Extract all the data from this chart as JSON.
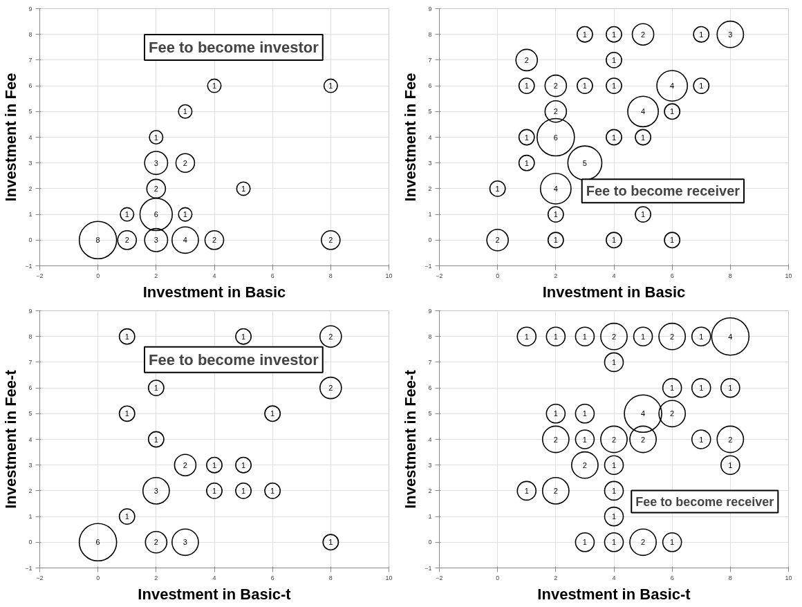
{
  "chart_data": [
    {
      "type": "bubble",
      "xlabel": "Investment in Basic",
      "ylabel": "Investment in Fee",
      "xlim": [
        -2,
        10
      ],
      "ylim": [
        -1,
        9
      ],
      "xticks": [
        -2,
        0,
        2,
        4,
        6,
        8,
        10
      ],
      "yticks": [
        -1,
        0,
        1,
        2,
        3,
        4,
        5,
        6,
        7,
        8,
        9
      ],
      "grid": true,
      "series": [
        {
          "color": "#000000",
          "x": [
            0,
            1,
            2,
            3,
            4,
            8,
            1,
            2,
            3,
            2,
            5,
            2,
            3,
            2,
            3,
            4,
            8
          ],
          "values": [
            0,
            0,
            0,
            0,
            0,
            0,
            1,
            1,
            1,
            2,
            2,
            3,
            3,
            4,
            5,
            6,
            6
          ],
          "sizes": [
            1,
            0.25,
            0.38,
            0.5,
            0.25,
            0.25,
            0.13,
            0.75,
            0.13,
            0.25,
            0.13,
            0.38,
            0.25,
            0.13,
            0.13,
            0.13,
            0.13
          ]
        }
      ],
      "annotations": [
        "Fee to become investor",
        {
          "text": "8",
          "x": 0,
          "y": 0
        },
        {
          "text": "2",
          "x": 1,
          "y": 0
        },
        {
          "text": "3",
          "x": 2,
          "y": 0
        },
        {
          "text": "4",
          "x": 3,
          "y": 0
        },
        {
          "text": "2",
          "x": 4,
          "y": 0
        },
        {
          "text": "2",
          "x": 8,
          "y": 0
        },
        {
          "text": "1",
          "x": 1,
          "y": 1
        },
        {
          "text": "6",
          "x": 2,
          "y": 1
        },
        {
          "text": "1",
          "x": 3,
          "y": 1
        },
        {
          "text": "2",
          "x": 2,
          "y": 2
        },
        {
          "text": "1",
          "x": 5,
          "y": 2
        },
        {
          "text": "3",
          "x": 2,
          "y": 3
        },
        {
          "text": "2",
          "x": 3,
          "y": 3
        },
        {
          "text": "1",
          "x": 2,
          "y": 4
        },
        {
          "text": "1",
          "x": 3,
          "y": 5
        },
        {
          "text": "1",
          "x": 4,
          "y": 6
        },
        {
          "text": "1",
          "x": 8,
          "y": 6
        }
      ]
    },
    {
      "type": "bubble",
      "xlabel": "Investment in Basic",
      "ylabel": "Investment in Fee",
      "xlim": [
        -2,
        10
      ],
      "ylim": [
        -1,
        9
      ],
      "xticks": [
        -2,
        0,
        2,
        4,
        6,
        8,
        10
      ],
      "yticks": [
        -1,
        0,
        1,
        2,
        3,
        4,
        5,
        6,
        7,
        8,
        9
      ],
      "grid": true,
      "series": [
        {
          "color": "#000000",
          "x": [
            3,
            4,
            5,
            7,
            8,
            1,
            4,
            1,
            2,
            3,
            4,
            6,
            7,
            2,
            5,
            6,
            1,
            2,
            4,
            5,
            1,
            3,
            0,
            2,
            2,
            5,
            0,
            2,
            4,
            6
          ],
          "values": [
            8,
            8,
            8,
            8,
            8,
            7,
            7,
            6,
            6,
            6,
            6,
            6,
            6,
            5,
            5,
            5,
            4,
            4,
            4,
            4,
            3,
            3,
            2,
            2,
            1,
            1,
            0,
            0,
            0,
            0
          ],
          "sizes": [
            0.17,
            0.17,
            0.33,
            0.17,
            0.5,
            0.33,
            0.17,
            0.17,
            0.33,
            0.17,
            0.17,
            0.67,
            0.17,
            0.33,
            0.67,
            0.17,
            0.17,
            1,
            0.17,
            0.17,
            0.17,
            0.83,
            0.17,
            0.67,
            0.17,
            0.17,
            0.33,
            0.17,
            0.17,
            0.17
          ]
        }
      ],
      "annotations": [
        "Fee to become receiver",
        {
          "text": "1",
          "x": 3,
          "y": 8
        },
        {
          "text": "1",
          "x": 4,
          "y": 8
        },
        {
          "text": "2",
          "x": 5,
          "y": 8
        },
        {
          "text": "1",
          "x": 7,
          "y": 8
        },
        {
          "text": "3",
          "x": 8,
          "y": 8
        },
        {
          "text": "2",
          "x": 1,
          "y": 7
        },
        {
          "text": "1",
          "x": 4,
          "y": 7
        },
        {
          "text": "1",
          "x": 1,
          "y": 6
        },
        {
          "text": "2",
          "x": 2,
          "y": 6
        },
        {
          "text": "1",
          "x": 3,
          "y": 6
        },
        {
          "text": "1",
          "x": 4,
          "y": 6
        },
        {
          "text": "4",
          "x": 6,
          "y": 6
        },
        {
          "text": "1",
          "x": 7,
          "y": 6
        },
        {
          "text": "2",
          "x": 2,
          "y": 5
        },
        {
          "text": "4",
          "x": 5,
          "y": 5
        },
        {
          "text": "1",
          "x": 6,
          "y": 5
        },
        {
          "text": "1",
          "x": 1,
          "y": 4
        },
        {
          "text": "6",
          "x": 2,
          "y": 4
        },
        {
          "text": "1",
          "x": 4,
          "y": 4
        },
        {
          "text": "1",
          "x": 5,
          "y": 4
        },
        {
          "text": "1",
          "x": 1,
          "y": 3
        },
        {
          "text": "5",
          "x": 3,
          "y": 3
        },
        {
          "text": "1",
          "x": 0,
          "y": 2
        },
        {
          "text": "4",
          "x": 2,
          "y": 2
        },
        {
          "text": "1",
          "x": 2,
          "y": 1
        },
        {
          "text": "1",
          "x": 5,
          "y": 1
        },
        {
          "text": "2",
          "x": 0,
          "y": 0
        },
        {
          "text": "1",
          "x": 2,
          "y": 0
        },
        {
          "text": "1",
          "x": 4,
          "y": 0
        },
        {
          "text": "1",
          "x": 6,
          "y": 0
        }
      ]
    },
    {
      "type": "bubble",
      "xlabel": "Investment in Basic-t",
      "ylabel": "Investment in Fee-t",
      "xlim": [
        -2,
        10
      ],
      "ylim": [
        -1,
        9
      ],
      "xticks": [
        -2,
        0,
        2,
        4,
        6,
        8,
        10
      ],
      "yticks": [
        -1,
        0,
        1,
        2,
        3,
        4,
        5,
        6,
        7,
        8,
        9
      ],
      "grid": true,
      "series": [
        {
          "color": "#000000",
          "x": [
            1,
            5,
            8,
            2,
            8,
            1,
            6,
            2,
            3,
            4,
            5,
            2,
            4,
            5,
            6,
            1,
            0,
            2,
            3,
            8
          ],
          "values": [
            8,
            8,
            8,
            6,
            6,
            5,
            5,
            4,
            3,
            3,
            3,
            2,
            2,
            2,
            2,
            1,
            0,
            0,
            0,
            0
          ],
          "sizes": [
            0.17,
            0.17,
            0.33,
            0.17,
            0.33,
            0.17,
            0.17,
            0.17,
            0.33,
            0.17,
            0.17,
            0.5,
            0.17,
            0.17,
            0.17,
            0.17,
            1,
            0.33,
            0.5,
            0.17
          ]
        }
      ],
      "annotations": [
        "Fee to become investor",
        {
          "text": "1",
          "x": 1,
          "y": 8
        },
        {
          "text": "1",
          "x": 5,
          "y": 8
        },
        {
          "text": "2",
          "x": 8,
          "y": 8
        },
        {
          "text": "1",
          "x": 2,
          "y": 6
        },
        {
          "text": "2",
          "x": 8,
          "y": 6
        },
        {
          "text": "1",
          "x": 1,
          "y": 5
        },
        {
          "text": "1",
          "x": 6,
          "y": 5
        },
        {
          "text": "1",
          "x": 2,
          "y": 4
        },
        {
          "text": "2",
          "x": 3,
          "y": 3
        },
        {
          "text": "1",
          "x": 4,
          "y": 3
        },
        {
          "text": "1",
          "x": 5,
          "y": 3
        },
        {
          "text": "3",
          "x": 2,
          "y": 2
        },
        {
          "text": "1",
          "x": 4,
          "y": 2
        },
        {
          "text": "1",
          "x": 5,
          "y": 2
        },
        {
          "text": "1",
          "x": 6,
          "y": 2
        },
        {
          "text": "1",
          "x": 1,
          "y": 1
        },
        {
          "text": "6",
          "x": 0,
          "y": 0
        },
        {
          "text": "2",
          "x": 2,
          "y": 0
        },
        {
          "text": "3",
          "x": 3,
          "y": 0
        },
        {
          "text": "1",
          "x": 8,
          "y": 0
        }
      ]
    },
    {
      "type": "bubble",
      "xlabel": "Investment in Basic-t",
      "ylabel": "Investment in Fee-t",
      "xlim": [
        -2,
        10
      ],
      "ylim": [
        -1,
        9
      ],
      "xticks": [
        -2,
        0,
        2,
        4,
        6,
        8,
        10
      ],
      "yticks": [
        -1,
        0,
        1,
        2,
        3,
        4,
        5,
        6,
        7,
        8,
        9
      ],
      "grid": true,
      "series": [
        {
          "color": "#000000",
          "x": [
            1,
            2,
            3,
            4,
            5,
            6,
            7,
            8,
            4,
            6,
            7,
            8,
            2,
            3,
            5,
            6,
            2,
            3,
            4,
            5,
            7,
            8,
            3,
            4,
            8,
            1,
            2,
            4,
            4,
            3,
            4,
            5,
            6
          ],
          "values": [
            8,
            8,
            8,
            8,
            8,
            8,
            8,
            8,
            7,
            6,
            6,
            6,
            5,
            5,
            5,
            5,
            4,
            4,
            4,
            4,
            4,
            4,
            3,
            3,
            3,
            2,
            2,
            2,
            1,
            0,
            0,
            0,
            0
          ],
          "sizes": [
            0.25,
            0.25,
            0.25,
            0.5,
            0.25,
            0.5,
            0.25,
            1,
            0.25,
            0.25,
            0.25,
            0.25,
            0.25,
            0.25,
            1,
            0.5,
            0.5,
            0.25,
            0.5,
            0.5,
            0.25,
            0.5,
            0.5,
            0.25,
            0.25,
            0.25,
            0.5,
            0.25,
            0.25,
            0.25,
            0.25,
            0.5,
            0.25
          ]
        }
      ],
      "annotations": [
        "Fee to become receiver",
        {
          "text": "1",
          "x": 1,
          "y": 8
        },
        {
          "text": "1",
          "x": 2,
          "y": 8
        },
        {
          "text": "1",
          "x": 3,
          "y": 8
        },
        {
          "text": "2",
          "x": 4,
          "y": 8
        },
        {
          "text": "1",
          "x": 5,
          "y": 8
        },
        {
          "text": "2",
          "x": 6,
          "y": 8
        },
        {
          "text": "1",
          "x": 7,
          "y": 8
        },
        {
          "text": "4",
          "x": 8,
          "y": 8
        },
        {
          "text": "1",
          "x": 4,
          "y": 7
        },
        {
          "text": "1",
          "x": 6,
          "y": 6
        },
        {
          "text": "1",
          "x": 7,
          "y": 6
        },
        {
          "text": "1",
          "x": 8,
          "y": 6
        },
        {
          "text": "1",
          "x": 2,
          "y": 5
        },
        {
          "text": "1",
          "x": 3,
          "y": 5
        },
        {
          "text": "4",
          "x": 5,
          "y": 5
        },
        {
          "text": "2",
          "x": 6,
          "y": 5
        },
        {
          "text": "2",
          "x": 2,
          "y": 4
        },
        {
          "text": "1",
          "x": 3,
          "y": 4
        },
        {
          "text": "2",
          "x": 4,
          "y": 4
        },
        {
          "text": "2",
          "x": 5,
          "y": 4
        },
        {
          "text": "1",
          "x": 7,
          "y": 4
        },
        {
          "text": "2",
          "x": 8,
          "y": 4
        },
        {
          "text": "2",
          "x": 3,
          "y": 3
        },
        {
          "text": "1",
          "x": 4,
          "y": 3
        },
        {
          "text": "1",
          "x": 8,
          "y": 3
        },
        {
          "text": "1",
          "x": 1,
          "y": 2
        },
        {
          "text": "2",
          "x": 2,
          "y": 2
        },
        {
          "text": "1",
          "x": 4,
          "y": 2
        },
        {
          "text": "1",
          "x": 4,
          "y": 1
        },
        {
          "text": "1",
          "x": 3,
          "y": 0
        },
        {
          "text": "1",
          "x": 4,
          "y": 0
        },
        {
          "text": "2",
          "x": 5,
          "y": 0
        },
        {
          "text": "1",
          "x": 6,
          "y": 0
        }
      ]
    }
  ]
}
